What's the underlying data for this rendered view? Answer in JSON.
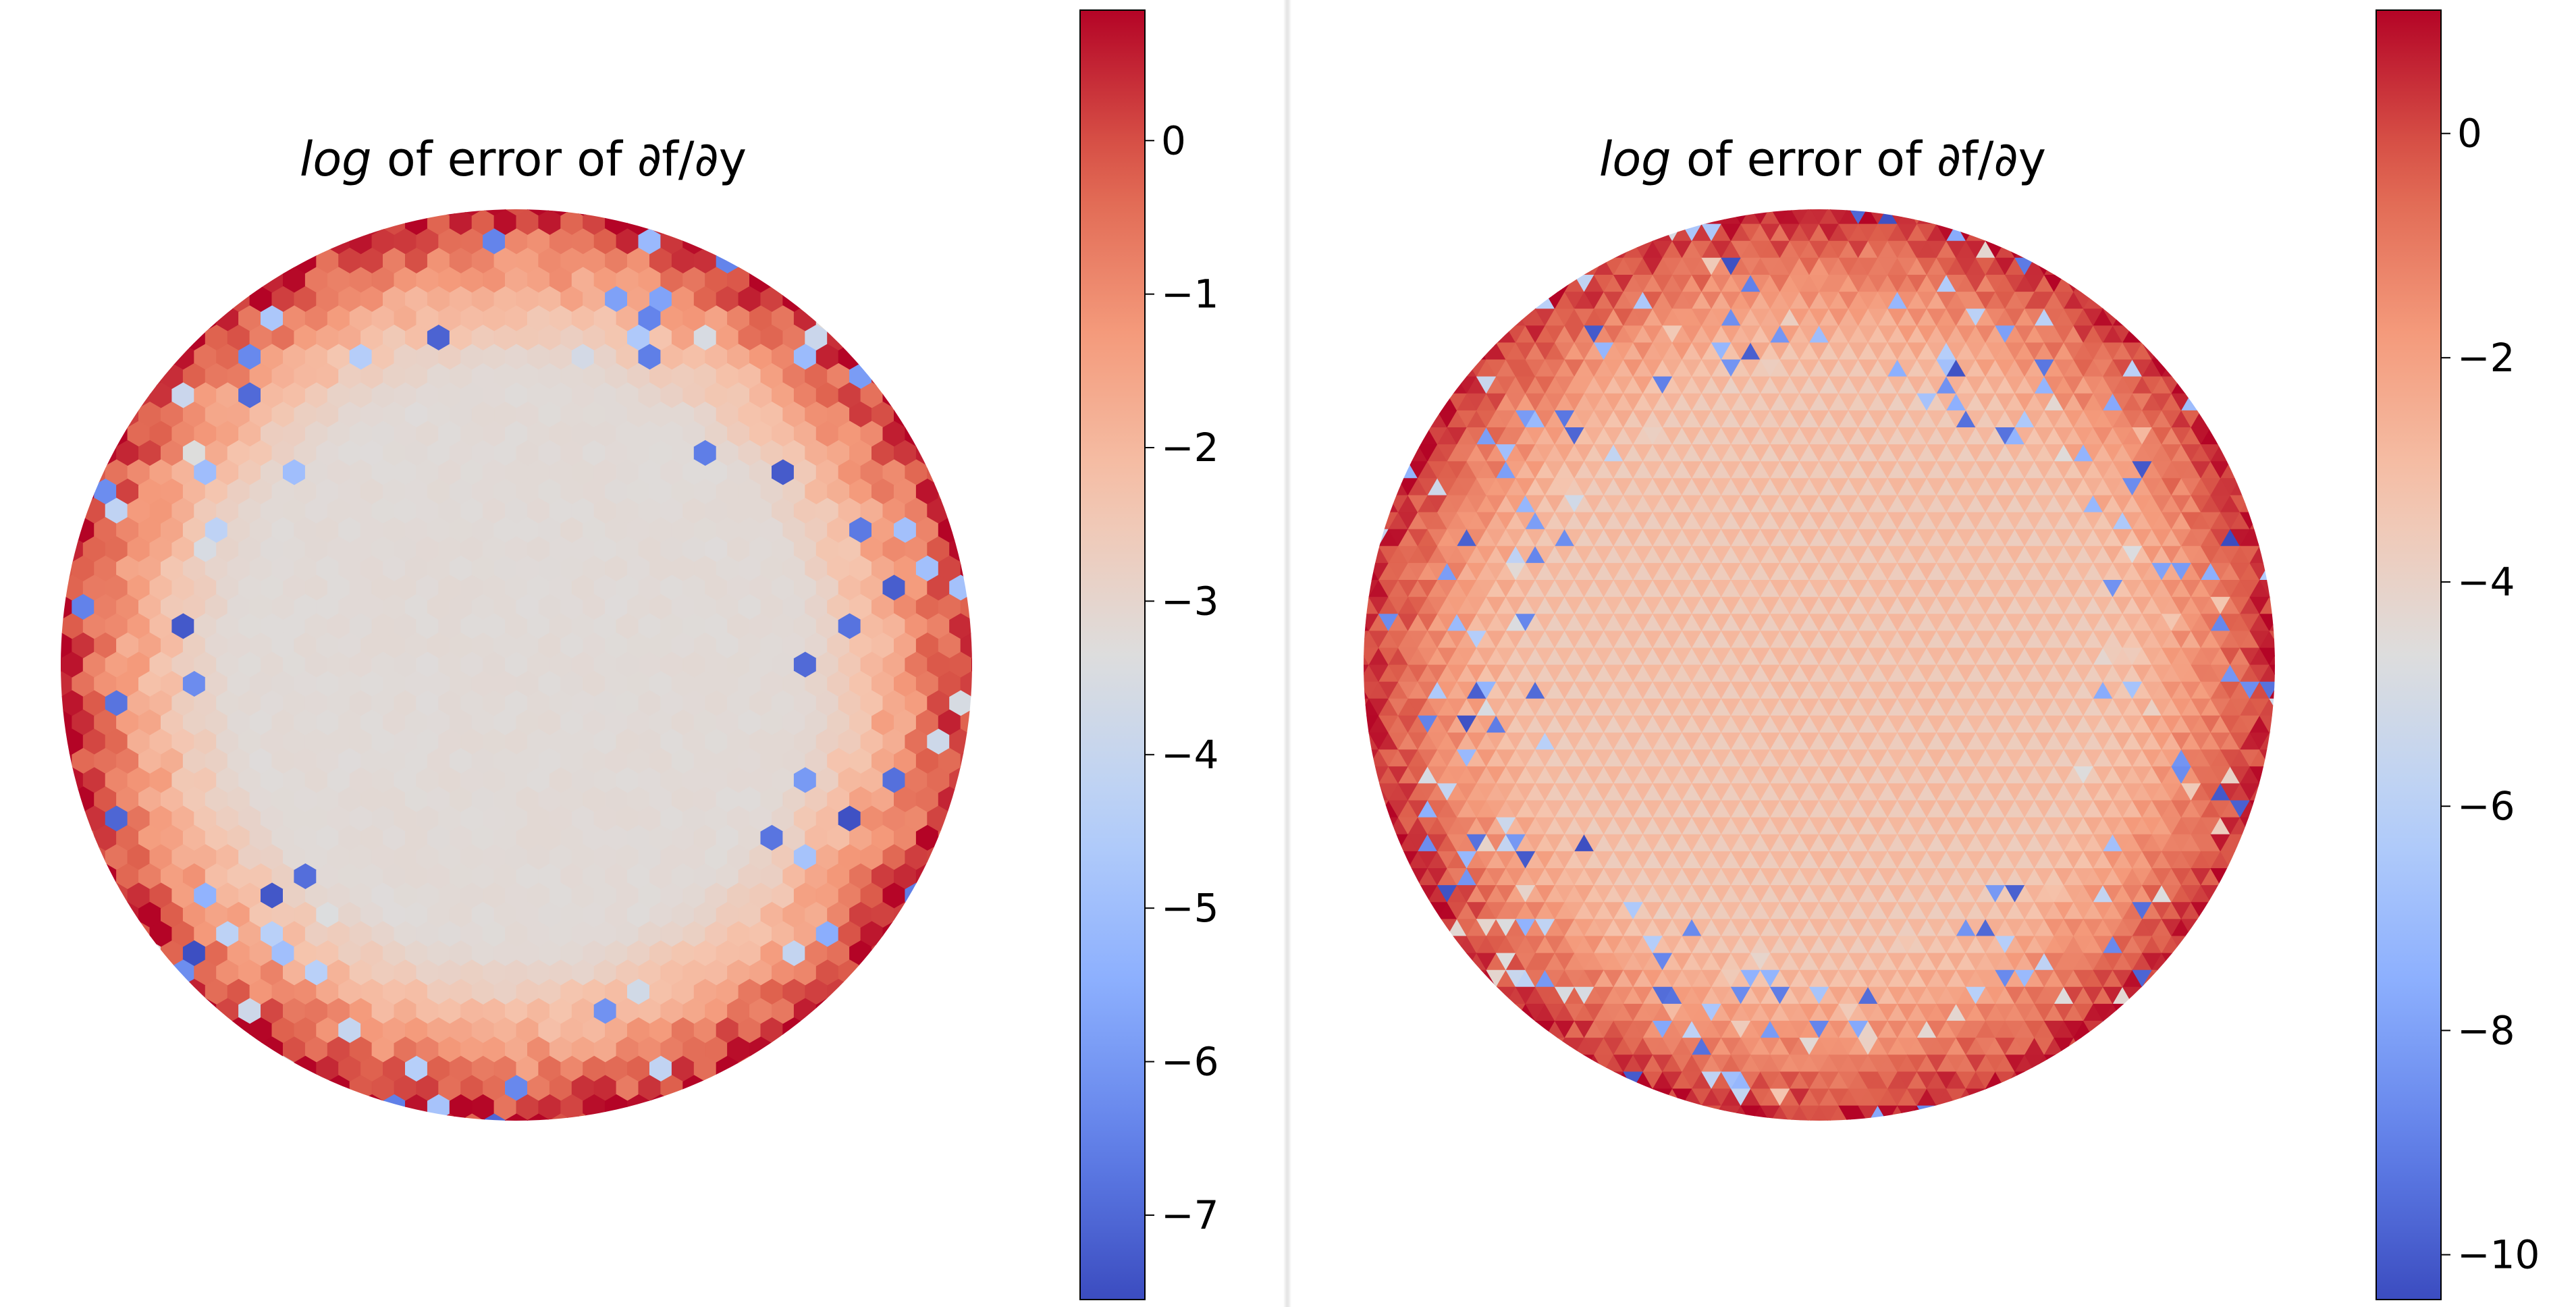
{
  "panels": [
    {
      "title_italic": "log",
      "title_rest": " of error of ∂f/∂y",
      "chart_data": {
        "type": "heatmap",
        "mesh": "hexagonal",
        "domain": "unit disk",
        "colormap": "coolwarm",
        "vmin": -7.55,
        "vmax": 0.85,
        "interior_value": -3.2,
        "boundary_value": 0.5,
        "colorbar_ticks": [
          0,
          -1,
          -2,
          -3,
          -4,
          -5,
          -6,
          -7
        ],
        "colorbar_tick_labels": [
          "0",
          "−1",
          "−2",
          "−3",
          "−4",
          "−5",
          "−6",
          "−7"
        ]
      }
    },
    {
      "title_italic": "log",
      "title_rest": " of error of ∂f/∂y",
      "chart_data": {
        "type": "heatmap",
        "mesh": "triangular",
        "domain": "unit disk",
        "colormap": "coolwarm",
        "vmin": -10.4,
        "vmax": 1.1,
        "interior_value": -2.8,
        "boundary_value": 0.6,
        "colorbar_ticks": [
          0,
          -2,
          -4,
          -6,
          -8,
          -10
        ],
        "colorbar_tick_labels": [
          "0",
          "−2",
          "−4",
          "−6",
          "−8",
          "−10"
        ]
      }
    }
  ]
}
